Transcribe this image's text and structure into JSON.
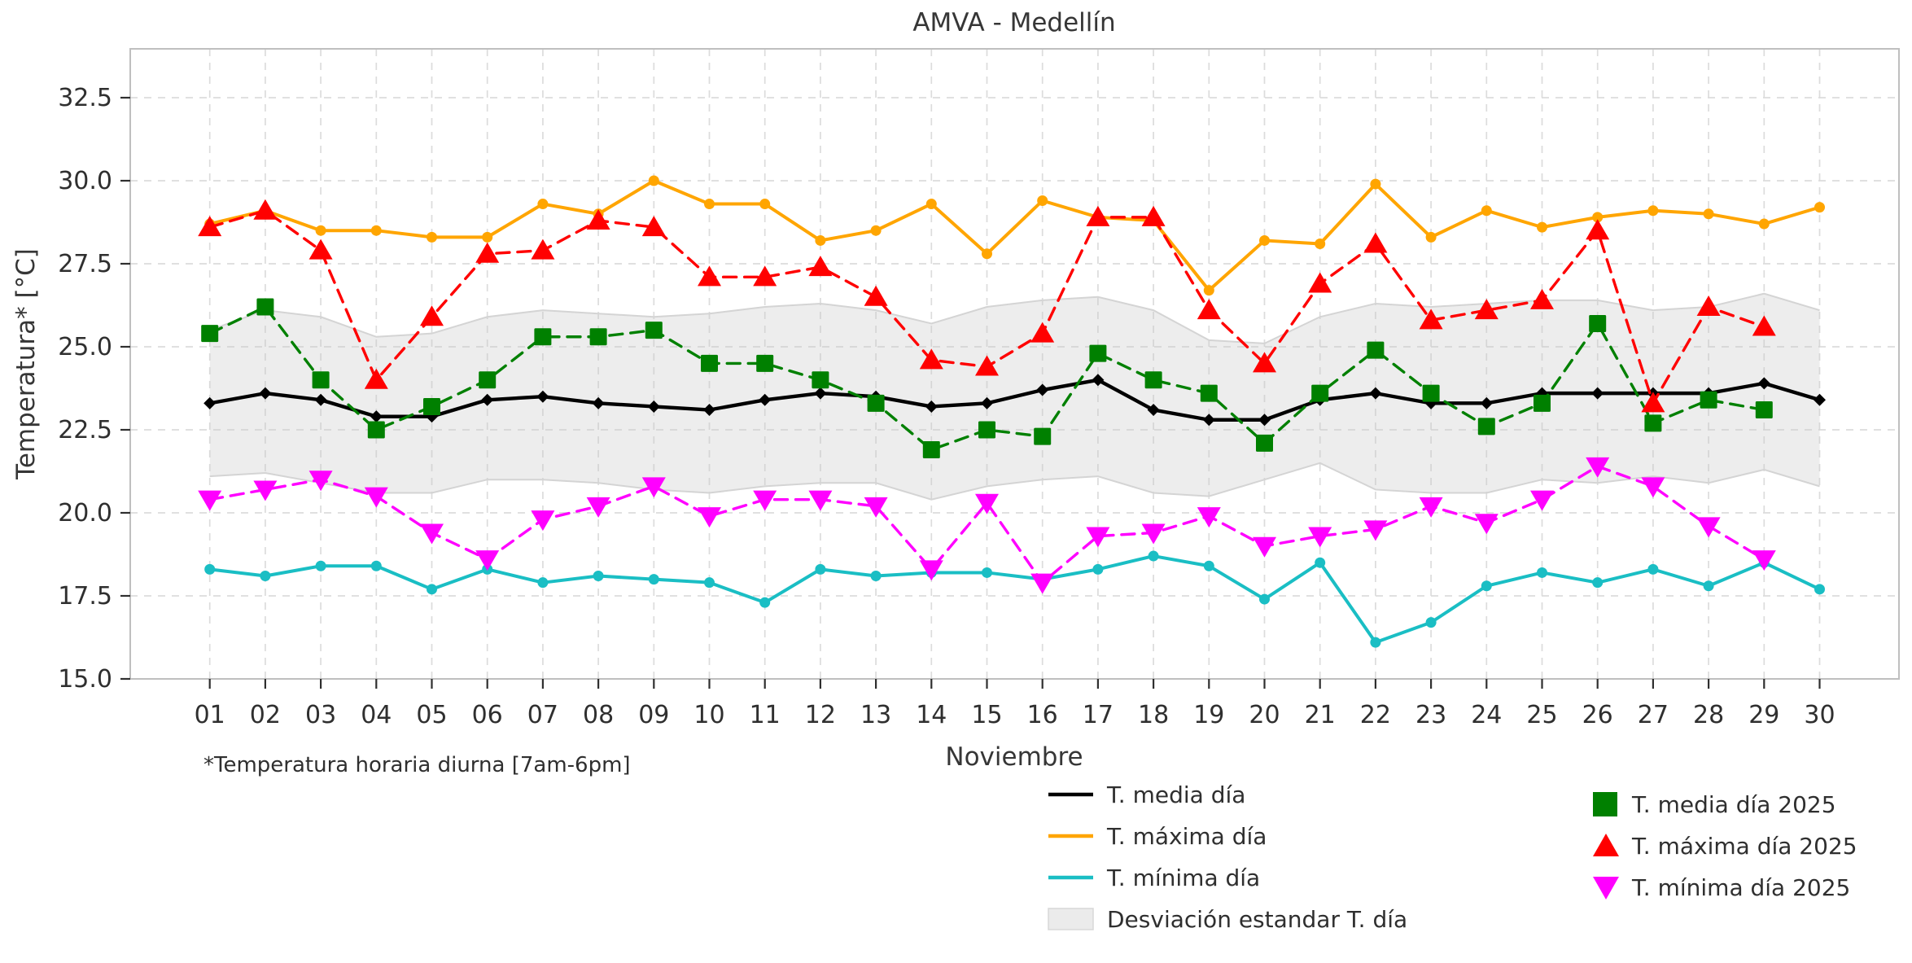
{
  "title": "AMVA - Medellín",
  "footnote": "*Temperatura horaria diurna [7am-6pm]",
  "chart_data": {
    "type": "line",
    "title": "AMVA - Medellín",
    "xlabel": "Noviembre",
    "ylabel": "Temperatura* [°C]",
    "x_categories": [
      "01",
      "02",
      "03",
      "04",
      "05",
      "06",
      "07",
      "08",
      "09",
      "10",
      "11",
      "12",
      "13",
      "14",
      "15",
      "16",
      "17",
      "18",
      "19",
      "20",
      "21",
      "22",
      "23",
      "24",
      "25",
      "26",
      "27",
      "28",
      "29",
      "30"
    ],
    "ylim": [
      15.0,
      34.0
    ],
    "yticks": [
      15.0,
      17.5,
      20.0,
      22.5,
      25.0,
      27.5,
      30.0,
      32.5
    ],
    "grid": true,
    "grid_color": "#dcdcdc",
    "spine_color": "#bfbfbf",
    "tick_color": "#2f2f2f",
    "text_color": "#363636",
    "series": [
      {
        "name": "T. media día",
        "color": "#000000",
        "style": "solid",
        "marker": "diamond",
        "values": [
          23.3,
          23.6,
          23.4,
          22.9,
          22.9,
          23.4,
          23.5,
          23.3,
          23.2,
          23.1,
          23.4,
          23.6,
          23.5,
          23.2,
          23.3,
          23.7,
          24.0,
          23.1,
          22.8,
          22.8,
          23.4,
          23.6,
          23.3,
          23.3,
          23.6,
          23.6,
          23.6,
          23.6,
          23.9,
          23.4
        ]
      },
      {
        "name": "T. máxima día",
        "color": "#FFA500",
        "style": "solid",
        "marker": "circle",
        "values": [
          28.7,
          29.1,
          28.5,
          28.5,
          28.3,
          28.3,
          29.3,
          29.0,
          30.0,
          29.3,
          29.3,
          28.2,
          28.5,
          29.3,
          27.8,
          29.4,
          28.9,
          28.8,
          26.7,
          28.2,
          28.1,
          29.9,
          28.3,
          29.1,
          28.6,
          28.9,
          29.1,
          29.0,
          28.7,
          29.2
        ]
      },
      {
        "name": "T. mínima día",
        "color": "#1ABEC4",
        "style": "solid",
        "marker": "circle",
        "values": [
          18.3,
          18.1,
          18.4,
          18.4,
          17.7,
          18.3,
          17.9,
          18.1,
          18.0,
          17.9,
          17.3,
          18.3,
          18.1,
          18.2,
          18.2,
          18.0,
          18.3,
          18.7,
          18.4,
          17.4,
          18.5,
          16.1,
          16.7,
          17.8,
          18.2,
          17.9,
          18.3,
          17.8,
          18.5,
          17.7
        ]
      },
      {
        "name": "T. media día 2025",
        "color": "#008000",
        "style": "dashed",
        "marker": "square",
        "values": [
          25.4,
          26.2,
          24.0,
          22.5,
          23.2,
          24.0,
          25.3,
          25.3,
          25.5,
          24.5,
          24.5,
          24.0,
          23.3,
          21.9,
          22.5,
          22.3,
          24.8,
          24.0,
          23.6,
          22.1,
          23.6,
          24.9,
          23.6,
          22.6,
          23.3,
          25.7,
          22.7,
          23.4,
          23.1
        ]
      },
      {
        "name": "T. máxima día 2025",
        "color": "#FF0000",
        "style": "dashed",
        "marker": "triangle-up",
        "values": [
          28.6,
          29.1,
          27.9,
          24.0,
          25.9,
          27.8,
          27.9,
          28.8,
          28.6,
          27.1,
          27.1,
          27.4,
          26.5,
          24.6,
          24.4,
          25.4,
          28.9,
          28.9,
          26.1,
          24.5,
          26.9,
          28.1,
          25.8,
          26.1,
          26.4,
          28.5,
          23.3,
          26.2,
          25.6
        ]
      },
      {
        "name": "T. mínima día 2025",
        "color": "#FF00FF",
        "style": "dashed",
        "marker": "triangle-down",
        "values": [
          20.4,
          20.7,
          21.0,
          20.5,
          19.4,
          18.6,
          19.8,
          20.2,
          20.8,
          19.9,
          20.4,
          20.4,
          20.2,
          18.3,
          20.3,
          17.9,
          19.3,
          19.4,
          19.9,
          19.0,
          19.3,
          19.5,
          20.2,
          19.7,
          20.4,
          21.4,
          20.8,
          19.6,
          18.6
        ]
      }
    ],
    "band": {
      "name": "Desviación estandar T. día",
      "fill_color": "#c8c8c8",
      "fill_opacity": 0.32,
      "edge_color": "#d4d4d4",
      "upper": [
        25.5,
        26.1,
        25.9,
        25.3,
        25.4,
        25.9,
        26.1,
        26.0,
        25.9,
        26.0,
        26.2,
        26.3,
        26.1,
        25.7,
        26.2,
        26.4,
        26.5,
        26.1,
        25.2,
        25.1,
        25.9,
        26.3,
        26.2,
        26.3,
        26.4,
        26.4,
        26.1,
        26.2,
        26.6,
        26.1
      ],
      "lower": [
        21.1,
        21.2,
        20.9,
        20.6,
        20.6,
        21.0,
        21.0,
        20.9,
        20.7,
        20.6,
        20.8,
        20.9,
        20.9,
        20.4,
        20.8,
        21.0,
        21.1,
        20.6,
        20.5,
        21.0,
        21.5,
        20.7,
        20.6,
        20.6,
        21.0,
        20.9,
        21.1,
        20.9,
        21.3,
        20.8
      ]
    },
    "legend_left": [
      {
        "label": "T. media día",
        "swatch": "line",
        "color": "#000000"
      },
      {
        "label": "T. máxima día",
        "swatch": "line",
        "color": "#FFA500"
      },
      {
        "label": "T. mínima día",
        "swatch": "line",
        "color": "#1ABEC4"
      },
      {
        "label": "Desviación estandar T. día",
        "swatch": "patch",
        "color": "#ebebeb",
        "edge": "#d8d8d8"
      }
    ],
    "legend_right": [
      {
        "label": "T. media día 2025",
        "swatch": "square",
        "color": "#008000"
      },
      {
        "label": "T. máxima día 2025",
        "swatch": "triangle-up",
        "color": "#FF0000"
      },
      {
        "label": "T. mínima día 2025",
        "swatch": "triangle-down",
        "color": "#FF00FF"
      }
    ]
  }
}
